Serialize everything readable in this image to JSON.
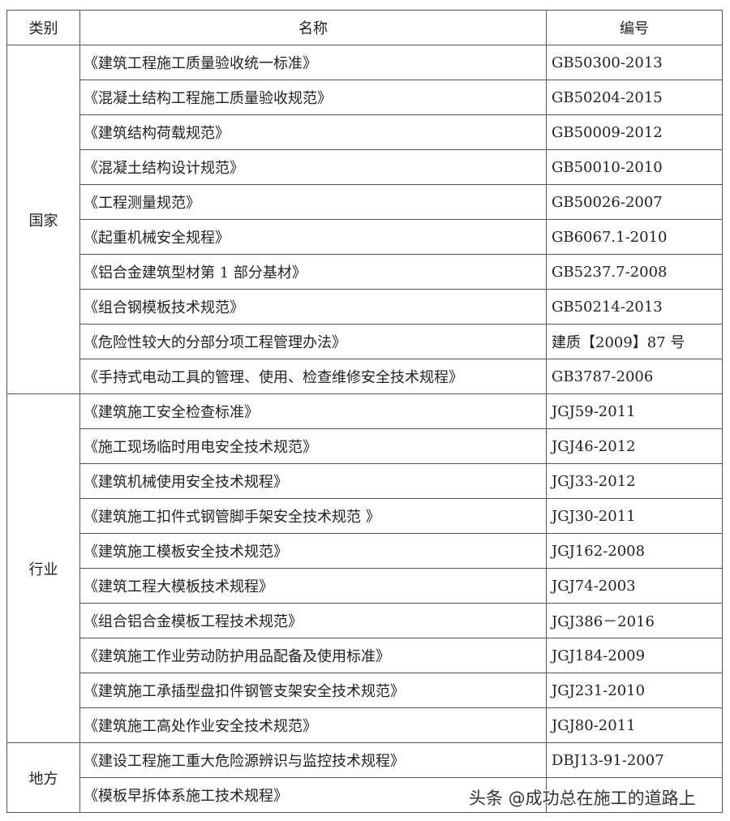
{
  "table": {
    "header": [
      "类别",
      "名称",
      "编号"
    ],
    "groups": [
      {
        "category": "国家",
        "rows": [
          {
            "name": "《建筑工程施工质量验收统一标准》",
            "code": "GB50300-2013"
          },
          {
            "name": "《混凝土结构工程施工质量验收规范》",
            "code": "GB50204-2015"
          },
          {
            "name": "《建筑结构荷载规范》",
            "code": "GB50009-2012"
          },
          {
            "name": "《混凝土结构设计规范》",
            "code": "GB50010-2010"
          },
          {
            "name": "《工程测量规范》",
            "code": "GB50026-2007"
          },
          {
            "name": "《起重机械安全规程》",
            "code": "GB6067.1-2010"
          },
          {
            "name": "《铝合金建筑型材第 1 部分基材》",
            "code": "GB5237.7-2008"
          },
          {
            "name": "《组合钢模板技术规范》",
            "code": "GB50214-2013"
          },
          {
            "name": "《危险性较大的分部分项工程管理办法》",
            "code": "建质【2009】87 号"
          },
          {
            "name": "《手持式电动工具的管理、使用、检查维修安全技术规程》",
            "code": "GB3787-2006"
          }
        ]
      },
      {
        "category": "行业",
        "rows": [
          {
            "name": "《建筑施工安全检查标准》",
            "code": "JGJ59-2011"
          },
          {
            "name": "《施工现场临时用电安全技术规范》",
            "code": "JGJ46-2012"
          },
          {
            "name": "《建筑机械使用安全技术规程》",
            "code": "JGJ33-2012"
          },
          {
            "name": "《建筑施工扣件式钢管脚手架安全技术规范 》",
            "code": "JGJ30-2011"
          },
          {
            "name": "《建筑施工模板安全技术规范》",
            "code": "JGJ162-2008"
          },
          {
            "name": "《建筑工程大模板技术规程》",
            "code": "JGJ74-2003"
          },
          {
            "name": "《组合铝合金模板工程技术规范》",
            "code": "JGJ386－2016"
          },
          {
            "name": "《建筑施工作业劳动防护用品配备及使用标准》",
            "code": "JGJ184-2009"
          },
          {
            "name": "《建筑施工承插型盘扣件钢管支架安全技术规范》",
            "code": "JGJ231-2010"
          },
          {
            "name": "《建筑施工高处作业安全技术规范》",
            "code": "JGJ80-2011"
          }
        ]
      },
      {
        "category": "地方",
        "rows": [
          {
            "name": "《建设工程施工重大危险源辨识与监控技术规程》",
            "code": "DBJ13-91-2007"
          },
          {
            "name": "《模板早拆体系施工技术规程》"
          }
        ]
      }
    ]
  },
  "watermark": "头条 @成功总在施工的道路上"
}
